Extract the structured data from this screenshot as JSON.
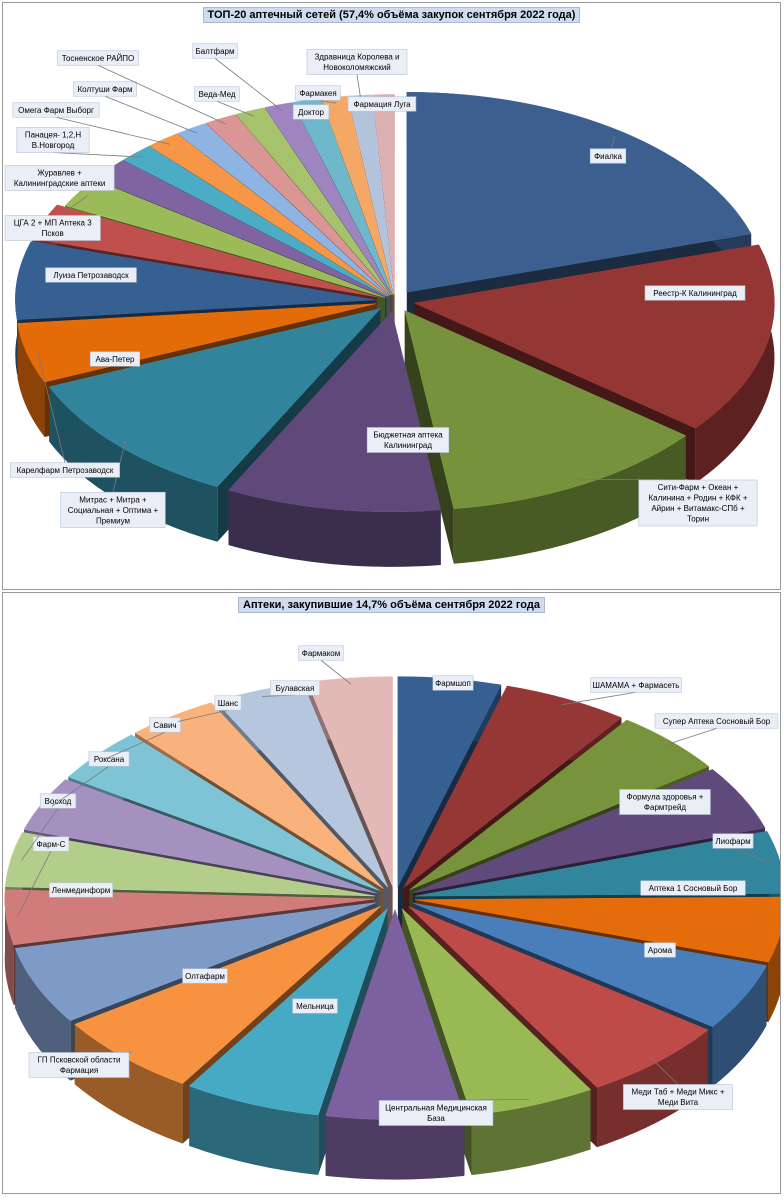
{
  "charts": [
    {
      "title": "ТОП-20 аптечный сетей (57,4% объёма закупок сентября 2022 года)",
      "chart_data": {
        "type": "pie",
        "start_angle_deg": 0,
        "labels": [
          "Фиалка",
          "Реестр-К Калининград",
          "Сити-Фарм + Океан + Калинина + Родин + КФК + Айрин + Витамакс-СПб + Торин",
          "Бюджетная аптека Калининград",
          "Митрас + Митра + Социальная + Оптима + Премиум",
          "Карелфарм Петрозаводск",
          "Ава-Петер",
          "Луиза Петрозаводск",
          "ЦГА 2 + МП Аптека 3 Псков",
          "Журавлев + Калининградские аптеки",
          "Панацея- 1,2,Н В.Новгород",
          "Омега Фарм Выборг",
          "Колтуши Фарм",
          "Тосненское РАЙПО",
          "Веда-Мед",
          "Балтфарм",
          "Доктор",
          "Фармакея",
          "Здравница Королева и Новоколомяжский",
          "Фармация Луга"
        ],
        "values": [
          21.0,
          16.0,
          12.5,
          10.0,
          11.5,
          5.0,
          6.5,
          3.0,
          2.5,
          2.0,
          1.6,
          1.6,
          1.5,
          1.5,
          1.4,
          1.3,
          1.3,
          1.2,
          1.1,
          1.0
        ],
        "colors": [
          "#3d5f8f",
          "#943634",
          "#76923c",
          "#5f497a",
          "#31849b",
          "#e36c09",
          "#366092",
          "#c0504d",
          "#9bbb59",
          "#8064a2",
          "#4bacc6",
          "#f79646",
          "#8eb4e3",
          "#d99694",
          "#a6c26c",
          "#9e85bf",
          "#6fb8cc",
          "#f5a866",
          "#b3c3dc",
          "#dcb0b0"
        ],
        "explode": [
          true,
          true,
          true,
          true,
          true,
          true,
          true,
          true,
          false,
          false,
          false,
          false,
          false,
          false,
          false,
          false,
          false,
          false,
          false,
          false
        ]
      }
    },
    {
      "title": "Аптеки, закупившие 14,7% объёма сентября 2022 года",
      "chart_data": {
        "type": "pie",
        "start_angle_deg": 0,
        "labels": [
          "Фармшоп",
          "ШАМАМА + Фармасеть",
          "Супер Аптека Сосновый Бор",
          "Формула здоровья + Фармтрейд",
          "Лиофарм",
          "Аптека 1 Сосновый Бор",
          "Арома",
          "Меди Таб + Меди Микс + Меди Вита",
          "Центральная Медицинская База",
          "Мельница",
          "Олтафарм",
          "ГП Псковской области Фармация",
          "Ленмединформ",
          "Фарм-С",
          "Восход",
          "Роксана",
          "Савич",
          "Шанс",
          "Булавская",
          "Фармаком"
        ],
        "values": [
          4.5,
          5.5,
          5.0,
          5.0,
          4.8,
          5.0,
          5.2,
          6.5,
          5.5,
          6.0,
          6.0,
          6.5,
          6.0,
          4.2,
          4.2,
          4.2,
          4.2,
          4.0,
          4.0,
          3.7
        ],
        "colors": [
          "#366092",
          "#953735",
          "#77933c",
          "#604a7b",
          "#31859c",
          "#e46c0a",
          "#4a7ebb",
          "#be4b48",
          "#98b954",
          "#7d60a0",
          "#46aac5",
          "#f69240",
          "#7e9bc8",
          "#d07c7a",
          "#b3cd8a",
          "#a491bf",
          "#7ec4d6",
          "#f9b27b",
          "#b7c6df",
          "#e3b9b8"
        ]
      }
    }
  ]
}
